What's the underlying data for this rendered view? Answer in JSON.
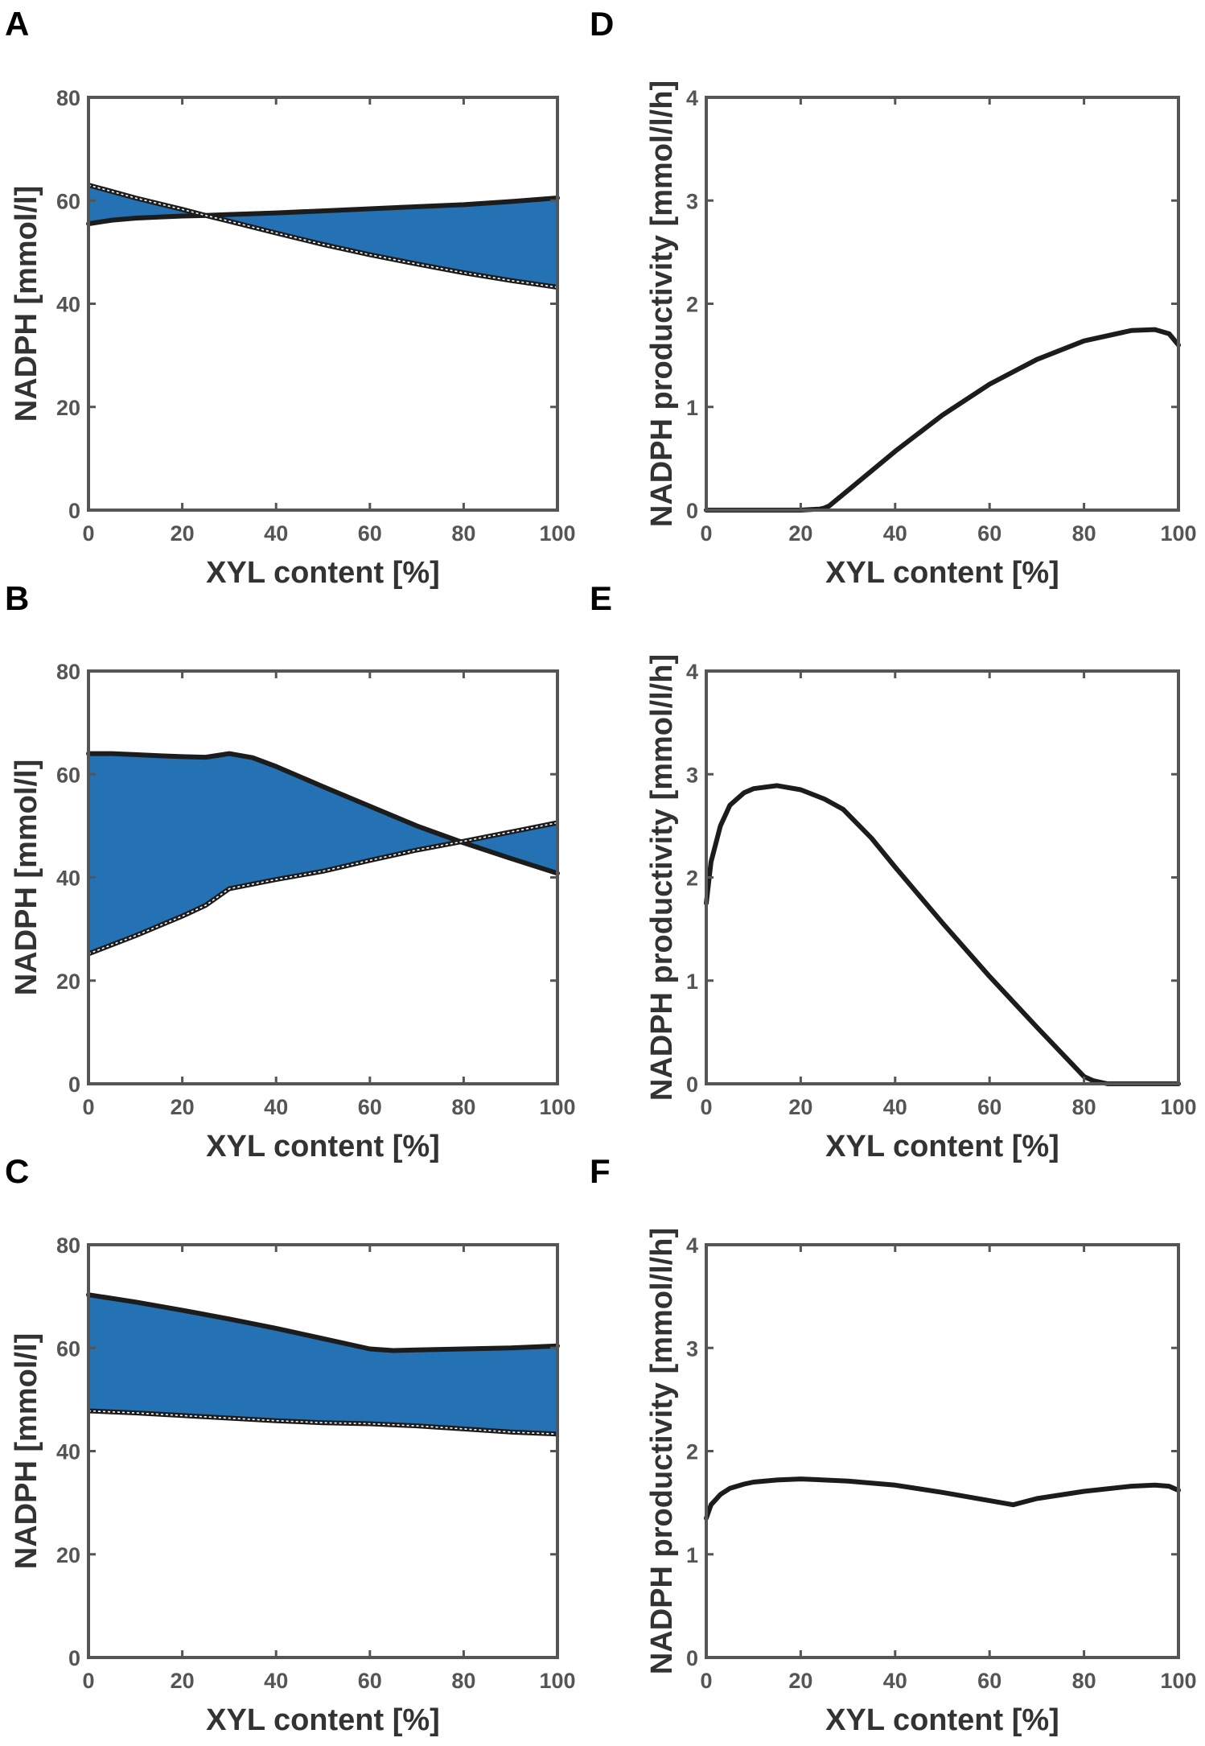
{
  "colors": {
    "fill": "#2471b3",
    "line": "#1c1c1c",
    "axis": "#555555",
    "dashed": "#ffffff"
  },
  "chart_data": [
    {
      "panel": "A",
      "type": "area",
      "title": "",
      "xlabel": "XYL content [%]",
      "ylabel": "NADPH [mmol/l]",
      "xlim": [
        0,
        100
      ],
      "ylim": [
        0,
        80
      ],
      "xticks": [
        "0",
        "20",
        "40",
        "60",
        "80",
        "100"
      ],
      "yticks": [
        "0",
        "20",
        "40",
        "60",
        "80"
      ],
      "series": [
        {
          "name": "solid",
          "x": [
            0,
            5,
            10,
            15,
            20,
            25,
            30,
            40,
            50,
            60,
            70,
            80,
            90,
            100
          ],
          "values": [
            55.5,
            56.2,
            56.6,
            56.8,
            57.0,
            57.1,
            57.3,
            57.6,
            58.0,
            58.4,
            58.8,
            59.2,
            59.8,
            60.5
          ]
        },
        {
          "name": "dashed",
          "x": [
            0,
            10,
            20,
            25,
            30,
            40,
            50,
            60,
            70,
            80,
            90,
            100
          ],
          "values": [
            63.0,
            60.5,
            58.3,
            57.1,
            56.0,
            53.7,
            51.5,
            49.5,
            47.7,
            46.0,
            44.5,
            43.2
          ]
        }
      ]
    },
    {
      "panel": "B",
      "type": "area",
      "title": "",
      "xlabel": "XYL content [%]",
      "ylabel": "NADPH [mmol/l]",
      "xlim": [
        0,
        100
      ],
      "ylim": [
        0,
        80
      ],
      "xticks": [
        "0",
        "20",
        "40",
        "60",
        "80",
        "100"
      ],
      "yticks": [
        "0",
        "20",
        "40",
        "60",
        "80"
      ],
      "series": [
        {
          "name": "solid",
          "x": [
            0,
            5,
            10,
            15,
            20,
            25,
            30,
            35,
            40,
            50,
            60,
            70,
            80,
            90,
            100
          ],
          "values": [
            64.0,
            64.0,
            63.8,
            63.6,
            63.4,
            63.3,
            64.0,
            63.2,
            61.5,
            57.6,
            53.8,
            50.0,
            46.7,
            43.7,
            40.8
          ]
        },
        {
          "name": "dashed",
          "x": [
            0,
            10,
            20,
            25,
            30,
            40,
            50,
            60,
            70,
            80,
            90,
            100
          ],
          "values": [
            25.2,
            28.7,
            32.5,
            34.6,
            37.8,
            39.6,
            41.2,
            43.3,
            45.3,
            47.0,
            48.8,
            50.6
          ]
        }
      ]
    },
    {
      "panel": "C",
      "type": "area",
      "title": "",
      "xlabel": "XYL content [%]",
      "ylabel": "NADPH [mmol/l]",
      "xlim": [
        0,
        100
      ],
      "ylim": [
        0,
        80
      ],
      "xticks": [
        "0",
        "20",
        "40",
        "60",
        "80",
        "100"
      ],
      "yticks": [
        "0",
        "20",
        "40",
        "60",
        "80"
      ],
      "series": [
        {
          "name": "solid",
          "x": [
            0,
            10,
            20,
            30,
            40,
            50,
            60,
            65,
            70,
            80,
            90,
            100
          ],
          "values": [
            70.3,
            68.9,
            67.3,
            65.6,
            63.8,
            61.8,
            59.8,
            59.5,
            59.6,
            59.8,
            60.0,
            60.4
          ]
        },
        {
          "name": "dashed",
          "x": [
            0,
            10,
            20,
            30,
            40,
            50,
            60,
            70,
            80,
            90,
            100
          ],
          "values": [
            47.8,
            47.4,
            46.9,
            46.4,
            45.9,
            45.5,
            45.3,
            44.9,
            44.3,
            43.7,
            43.3
          ]
        }
      ]
    },
    {
      "panel": "D",
      "type": "line",
      "title": "",
      "xlabel": "XYL content [%]",
      "ylabel": "NADPH productivity [mmol/l/h]",
      "xlim": [
        0,
        100
      ],
      "ylim": [
        0,
        4
      ],
      "xticks": [
        "0",
        "20",
        "40",
        "60",
        "80",
        "100"
      ],
      "yticks": [
        "0",
        "1",
        "2",
        "3",
        "4"
      ],
      "series": [
        {
          "name": "productivity",
          "x": [
            0,
            10,
            20,
            24,
            25,
            26,
            30,
            40,
            50,
            60,
            70,
            80,
            90,
            95,
            98,
            100
          ],
          "values": [
            0,
            0,
            0,
            0.01,
            0.02,
            0.04,
            0.19,
            0.57,
            0.92,
            1.22,
            1.46,
            1.64,
            1.74,
            1.75,
            1.71,
            1.6
          ]
        }
      ]
    },
    {
      "panel": "E",
      "type": "line",
      "title": "",
      "xlabel": "XYL content [%]",
      "ylabel": "NADPH productivity [mmol/l/h]",
      "xlim": [
        0,
        100
      ],
      "ylim": [
        0,
        4
      ],
      "xticks": [
        "0",
        "20",
        "40",
        "60",
        "80",
        "100"
      ],
      "yticks": [
        "0",
        "1",
        "2",
        "3",
        "4"
      ],
      "series": [
        {
          "name": "productivity",
          "x": [
            0,
            1,
            3,
            5,
            8,
            10,
            15,
            20,
            25,
            29,
            35,
            40,
            50,
            60,
            70,
            80,
            82,
            85,
            90,
            100
          ],
          "values": [
            1.75,
            2.15,
            2.5,
            2.7,
            2.82,
            2.86,
            2.89,
            2.85,
            2.76,
            2.66,
            2.38,
            2.1,
            1.56,
            1.04,
            0.55,
            0.07,
            0.03,
            0,
            0,
            0
          ]
        }
      ]
    },
    {
      "panel": "F",
      "type": "line",
      "title": "",
      "xlabel": "XYL content [%]",
      "ylabel": "NADPH productivity [mmol/l/h]",
      "xlim": [
        0,
        100
      ],
      "ylim": [
        0,
        4
      ],
      "xticks": [
        "0",
        "20",
        "40",
        "60",
        "80",
        "100"
      ],
      "yticks": [
        "0",
        "1",
        "2",
        "3",
        "4"
      ],
      "series": [
        {
          "name": "productivity",
          "x": [
            0,
            1,
            3,
            5,
            8,
            10,
            15,
            20,
            30,
            40,
            50,
            60,
            65,
            70,
            80,
            90,
            95,
            98,
            100
          ],
          "values": [
            1.35,
            1.48,
            1.58,
            1.64,
            1.68,
            1.7,
            1.72,
            1.73,
            1.71,
            1.67,
            1.6,
            1.52,
            1.48,
            1.54,
            1.61,
            1.66,
            1.67,
            1.66,
            1.62
          ]
        }
      ]
    }
  ]
}
